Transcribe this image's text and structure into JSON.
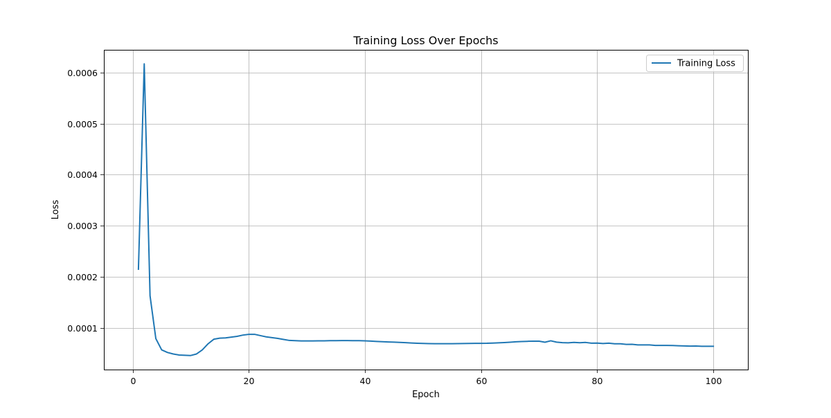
{
  "chart_data": {
    "type": "line",
    "title": "Training Loss Over Epochs",
    "xlabel": "Epoch",
    "ylabel": "Loss",
    "xlim": [
      -4.95,
      105.95
    ],
    "ylim": [
      1.85e-05,
      0.0006445
    ],
    "xticks": [
      0,
      20,
      40,
      60,
      80,
      100
    ],
    "xtick_labels": [
      "0",
      "20",
      "40",
      "60",
      "80",
      "100"
    ],
    "yticks": [
      0.0001,
      0.0002,
      0.0003,
      0.0004,
      0.0005,
      0.0006
    ],
    "ytick_labels": [
      "0.0001",
      "0.0002",
      "0.0003",
      "0.0004",
      "0.0005",
      "0.0006"
    ],
    "grid": true,
    "legend_position": "top-right",
    "series_color": "#1f77b4",
    "series": [
      {
        "name": "Training Loss",
        "x": [
          1,
          2,
          3,
          4,
          5,
          6,
          7,
          8,
          9,
          10,
          11,
          12,
          13,
          14,
          15,
          16,
          17,
          18,
          19,
          20,
          21,
          22,
          23,
          24,
          25,
          26,
          27,
          28,
          29,
          30,
          31,
          32,
          33,
          34,
          35,
          36,
          37,
          38,
          39,
          40,
          41,
          42,
          43,
          44,
          45,
          46,
          47,
          48,
          49,
          50,
          51,
          52,
          53,
          54,
          55,
          56,
          57,
          58,
          59,
          60,
          61,
          62,
          63,
          64,
          65,
          66,
          67,
          68,
          69,
          70,
          71,
          72,
          73,
          74,
          75,
          76,
          77,
          78,
          79,
          80,
          81,
          82,
          83,
          84,
          85,
          86,
          87,
          88,
          89,
          90,
          91,
          92,
          93,
          94,
          95,
          96,
          97,
          98,
          99,
          100
        ],
        "y": [
          0.000215,
          0.000617,
          0.000163,
          7.9e-05,
          5.7e-05,
          5.2e-05,
          4.9e-05,
          4.7e-05,
          4.65e-05,
          4.6e-05,
          4.9e-05,
          5.7e-05,
          6.9e-05,
          7.8e-05,
          8e-05,
          8.05e-05,
          8.2e-05,
          8.35e-05,
          8.6e-05,
          8.75e-05,
          8.75e-05,
          8.5e-05,
          8.25e-05,
          8.1e-05,
          7.95e-05,
          7.75e-05,
          7.55e-05,
          7.5e-05,
          7.45e-05,
          7.45e-05,
          7.45e-05,
          7.47e-05,
          7.48e-05,
          7.5e-05,
          7.51e-05,
          7.52e-05,
          7.52e-05,
          7.51e-05,
          7.5e-05,
          7.47e-05,
          7.42e-05,
          7.36e-05,
          7.3e-05,
          7.26e-05,
          7.22e-05,
          7.17e-05,
          7.12e-05,
          7.05e-05,
          7e-05,
          6.96e-05,
          6.93e-05,
          6.92e-05,
          6.92e-05,
          6.92e-05,
          6.92e-05,
          6.93e-05,
          6.95e-05,
          6.97e-05,
          6.98e-05,
          6.99e-05,
          7e-05,
          7.04e-05,
          7.08e-05,
          7.14e-05,
          7.2e-05,
          7.28e-05,
          7.34e-05,
          7.38e-05,
          7.4e-05,
          7.4e-05,
          7.2e-05,
          7.48e-05,
          7.22e-05,
          7.12e-05,
          7.08e-05,
          7.16e-05,
          7.1e-05,
          7.16e-05,
          7.02e-05,
          7.04e-05,
          6.95e-05,
          7.02e-05,
          6.9e-05,
          6.89e-05,
          6.78e-05,
          6.8e-05,
          6.68e-05,
          6.68e-05,
          6.67e-05,
          6.58e-05,
          6.58e-05,
          6.57e-05,
          6.55e-05,
          6.51e-05,
          6.48e-05,
          6.44e-05,
          6.45e-05,
          6.4e-05,
          6.4e-05,
          6.4e-05
        ]
      }
    ]
  }
}
